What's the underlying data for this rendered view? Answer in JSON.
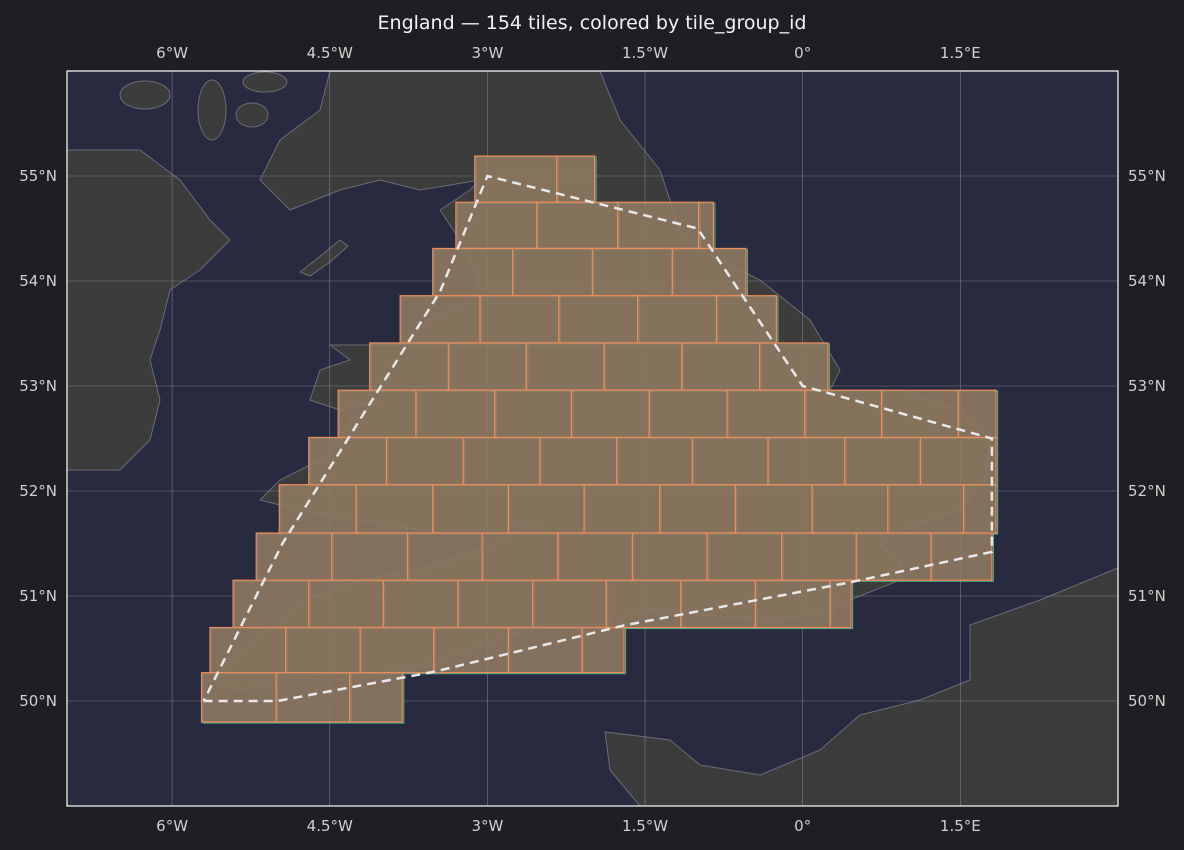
{
  "title": "England — 154 tiles, colored by tile_group_id",
  "colors": {
    "background": "#1e1f23",
    "ocean": "#282a3f",
    "land": "#3c3c3c",
    "coastline": "#6a6d75",
    "tile_fill": "#8f7a62",
    "tile_edge_primary": "#f08a5a",
    "tile_edge_secondary": "#4aa88a",
    "boundary": "#e8e8e8",
    "grid": "#9a9aa0"
  },
  "chart_data": {
    "type": "map",
    "title": "England — 154 tiles, colored by tile_group_id",
    "extent": {
      "lon": [
        -7,
        3
      ],
      "lat": [
        49,
        56
      ]
    },
    "grid": true,
    "lon_ticks": [
      -6,
      -4.5,
      -3,
      -1.5,
      0,
      1.5
    ],
    "lon_tick_labels": [
      "6°W",
      "4.5°W",
      "3°W",
      "1.5°W",
      "0°",
      "1.5°E"
    ],
    "lat_ticks": [
      50,
      51,
      52,
      53,
      54,
      55
    ],
    "lat_tick_labels": [
      "50°N",
      "51°N",
      "52°N",
      "53°N",
      "54°N",
      "55°N"
    ],
    "tile_rows": [
      {
        "lat": [
          54.75,
          55.19
        ],
        "lon_edges": [
          -3.12,
          -2.34,
          -1.98
        ]
      },
      {
        "lat": [
          54.31,
          54.75
        ],
        "lon_edges": [
          -3.3,
          -2.53,
          -1.76,
          -0.99,
          -0.85
        ]
      },
      {
        "lat": [
          53.86,
          54.31
        ],
        "lon_edges": [
          -3.52,
          -2.76,
          -2.0,
          -1.24,
          -0.54
        ]
      },
      {
        "lat": [
          53.41,
          53.86
        ],
        "lon_edges": [
          -3.83,
          -3.07,
          -2.32,
          -1.57,
          -0.82,
          -0.25
        ]
      },
      {
        "lat": [
          52.96,
          53.41
        ],
        "lon_edges": [
          -4.12,
          -3.37,
          -2.63,
          -1.89,
          -1.15,
          -0.41,
          0.24
        ]
      },
      {
        "lat": [
          52.51,
          52.96
        ],
        "lon_edges": [
          -4.42,
          -3.68,
          -2.93,
          -2.2,
          -1.46,
          -0.72,
          0.02,
          0.75,
          1.48,
          1.84
        ]
      },
      {
        "lat": [
          52.06,
          52.51
        ],
        "lon_edges": [
          -4.7,
          -3.96,
          -3.23,
          -2.5,
          -1.77,
          -1.05,
          -0.33,
          0.4,
          1.12,
          1.84
        ]
      },
      {
        "lat": [
          51.6,
          52.06
        ],
        "lon_edges": [
          -4.98,
          -4.25,
          -3.52,
          -2.8,
          -2.08,
          -1.36,
          -0.64,
          0.09,
          0.81,
          1.53,
          1.84
        ]
      },
      {
        "lat": [
          51.15,
          51.6
        ],
        "lon_edges": [
          -5.2,
          -4.48,
          -3.76,
          -3.05,
          -2.33,
          -1.62,
          -0.91,
          -0.2,
          0.51,
          1.22,
          1.8
        ]
      },
      {
        "lat": [
          50.7,
          51.15
        ],
        "lon_edges": [
          -5.42,
          -4.7,
          -3.99,
          -3.28,
          -2.57,
          -1.87,
          -1.16,
          -0.45,
          0.26,
          0.46
        ]
      },
      {
        "lat": [
          50.27,
          50.7
        ],
        "lon_edges": [
          -5.64,
          -4.92,
          -4.21,
          -3.51,
          -2.8,
          -2.1,
          -1.7
        ]
      },
      {
        "lat": [
          49.8,
          50.27
        ],
        "lon_edges": [
          -5.72,
          -5.01,
          -4.31,
          -3.81
        ]
      }
    ],
    "boundary_polygon": [
      [
        -5.7,
        50.0
      ],
      [
        -5.0,
        50.0
      ],
      [
        -3.5,
        50.28
      ],
      [
        -1.7,
        50.72
      ],
      [
        0.45,
        51.13
      ],
      [
        1.8,
        51.42
      ],
      [
        1.8,
        52.5
      ],
      [
        0.0,
        53.0
      ],
      [
        -1.0,
        54.5
      ],
      [
        -3.0,
        55.0
      ],
      [
        -3.45,
        53.9
      ],
      [
        -4.95,
        51.5
      ],
      [
        -5.7,
        50.0
      ]
    ]
  }
}
